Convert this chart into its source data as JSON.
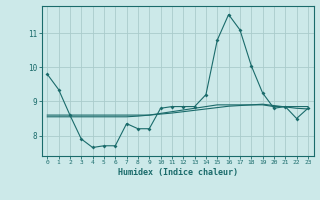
{
  "xlabel": "Humidex (Indice chaleur)",
  "background_color": "#cce9e9",
  "grid_color": "#aacccc",
  "line_color": "#1a6b6b",
  "x_values": [
    0,
    1,
    2,
    3,
    4,
    5,
    6,
    7,
    8,
    9,
    10,
    11,
    12,
    13,
    14,
    15,
    16,
    17,
    18,
    19,
    20,
    21,
    22,
    23
  ],
  "series1": [
    9.8,
    9.35,
    8.6,
    7.9,
    7.65,
    7.7,
    7.7,
    8.35,
    8.2,
    8.2,
    8.8,
    8.85,
    8.85,
    8.85,
    9.2,
    10.8,
    11.55,
    11.1,
    10.05,
    9.25,
    8.8,
    8.85,
    8.5,
    8.8
  ],
  "series2": [
    8.6,
    8.6,
    8.6,
    8.6,
    8.6,
    8.6,
    8.6,
    8.6,
    8.6,
    8.6,
    8.65,
    8.7,
    8.75,
    8.8,
    8.85,
    8.9,
    8.9,
    8.9,
    8.9,
    8.9,
    8.85,
    8.85,
    8.85,
    8.85
  ],
  "series3": [
    8.55,
    8.55,
    8.55,
    8.55,
    8.55,
    8.55,
    8.55,
    8.55,
    8.57,
    8.6,
    8.63,
    8.66,
    8.7,
    8.74,
    8.78,
    8.82,
    8.86,
    8.88,
    8.9,
    8.92,
    8.88,
    8.84,
    8.8,
    8.78
  ],
  "ylim": [
    7.4,
    11.8
  ],
  "yticks": [
    8,
    9,
    10,
    11
  ],
  "xticks": [
    0,
    1,
    2,
    3,
    4,
    5,
    6,
    7,
    8,
    9,
    10,
    11,
    12,
    13,
    14,
    15,
    16,
    17,
    18,
    19,
    20,
    21,
    22,
    23
  ]
}
